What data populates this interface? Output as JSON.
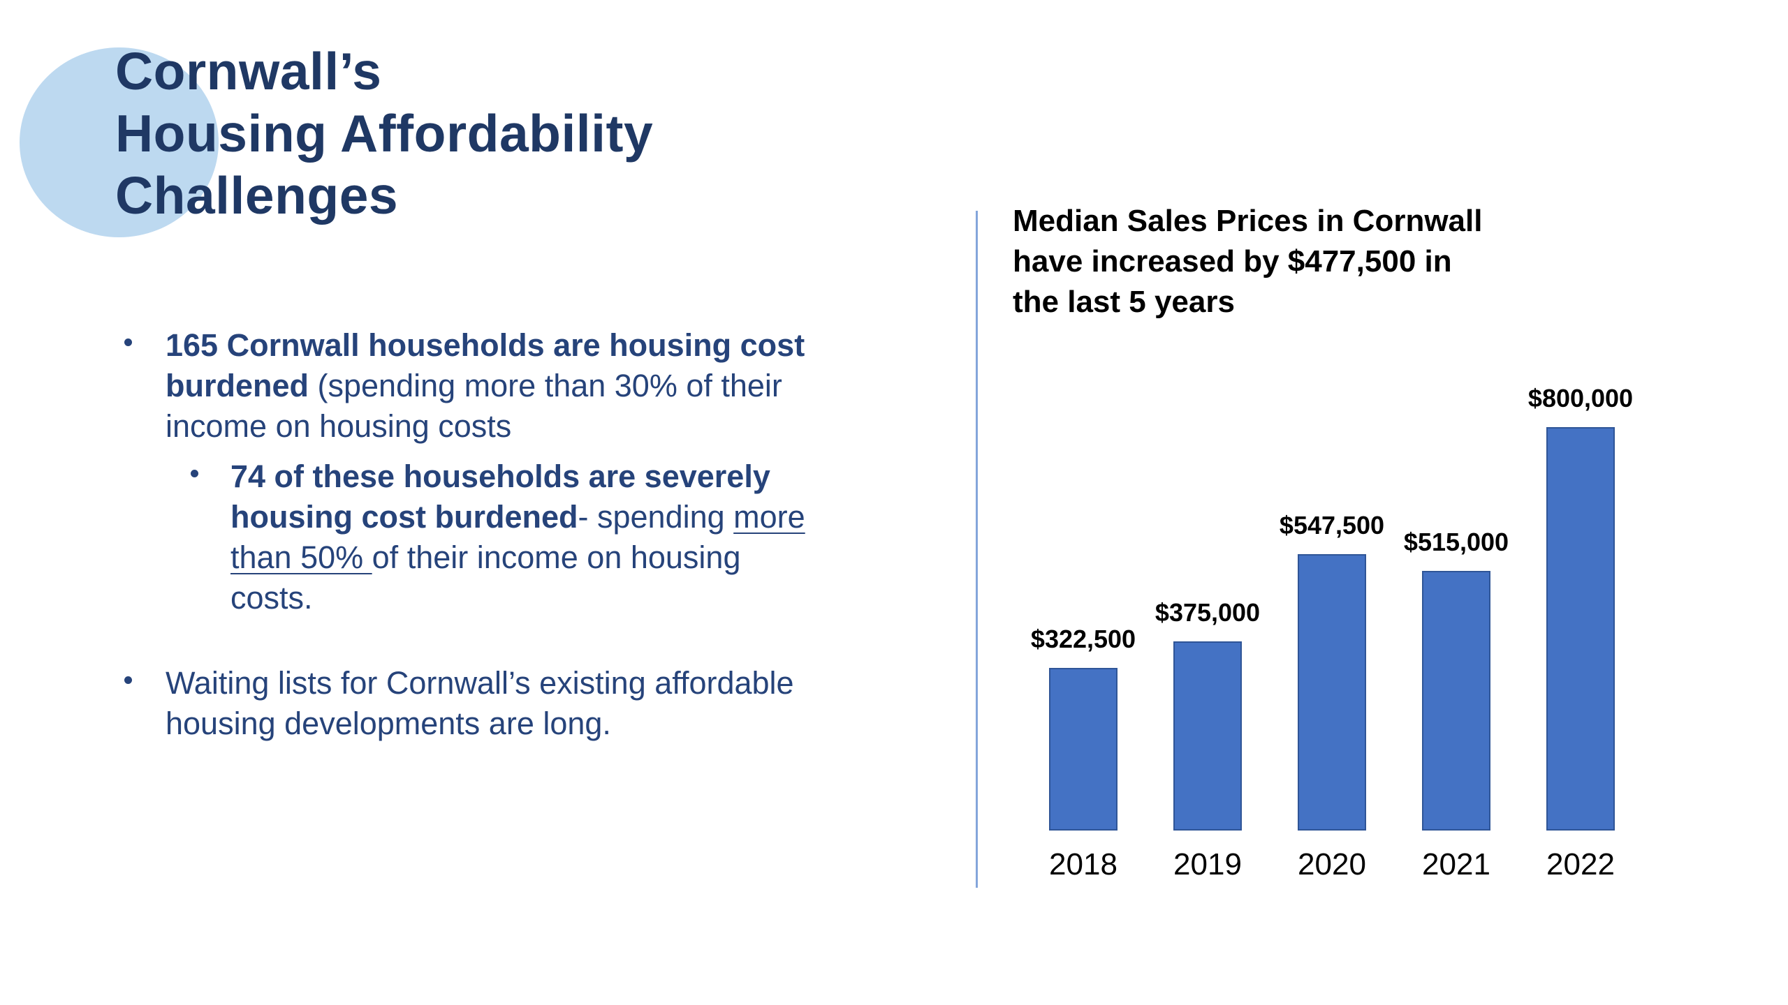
{
  "slide": {
    "title": "Cornwall’s\nHousing Affordability\nChallenges"
  },
  "bullets": {
    "item1": {
      "bold": "165 Cornwall households are housing cost burdened ",
      "regular": "(spending more than 30% of their income on housing costs"
    },
    "item1_sub": {
      "bold": "74 of these households are severely housing cost burdened",
      "regular_before_underline": "- spending ",
      "underlined": "more than 50% ",
      "regular_after_underline": "of their income on housing costs."
    },
    "item2": {
      "text": "Waiting lists for Cornwall’s existing affordable housing developments are long."
    }
  },
  "chart_panel": {
    "title_lines": "Median Sales Prices in Cornwall\nhave increased by $477,500 in\nthe last 5 years"
  },
  "chart_data": {
    "type": "bar",
    "title": "Median Sales Prices in Cornwall have increased by $477,500 in the last 5 years",
    "categories": [
      "2018",
      "2019",
      "2020",
      "2021",
      "2022"
    ],
    "values": [
      322500,
      375000,
      547500,
      515000,
      800000
    ],
    "data_labels": [
      "$322,500",
      "$375,000",
      "$547,500",
      "$515,000",
      "$800,000"
    ],
    "xlabel": "",
    "ylabel": "",
    "ylim": [
      0,
      830000
    ],
    "grid": false,
    "legend": false,
    "axis_lines": false,
    "data_label_position": "above-bar"
  },
  "colors": {
    "background": "#FFFFFF",
    "title_text": "#1F3864",
    "body_text": "#26437A",
    "accent_circle": "#BDD9F0",
    "divider": "#84A5DB",
    "bar_fill": "#4472C4",
    "bar_border": "#2F5597",
    "chart_text": "#000000"
  }
}
